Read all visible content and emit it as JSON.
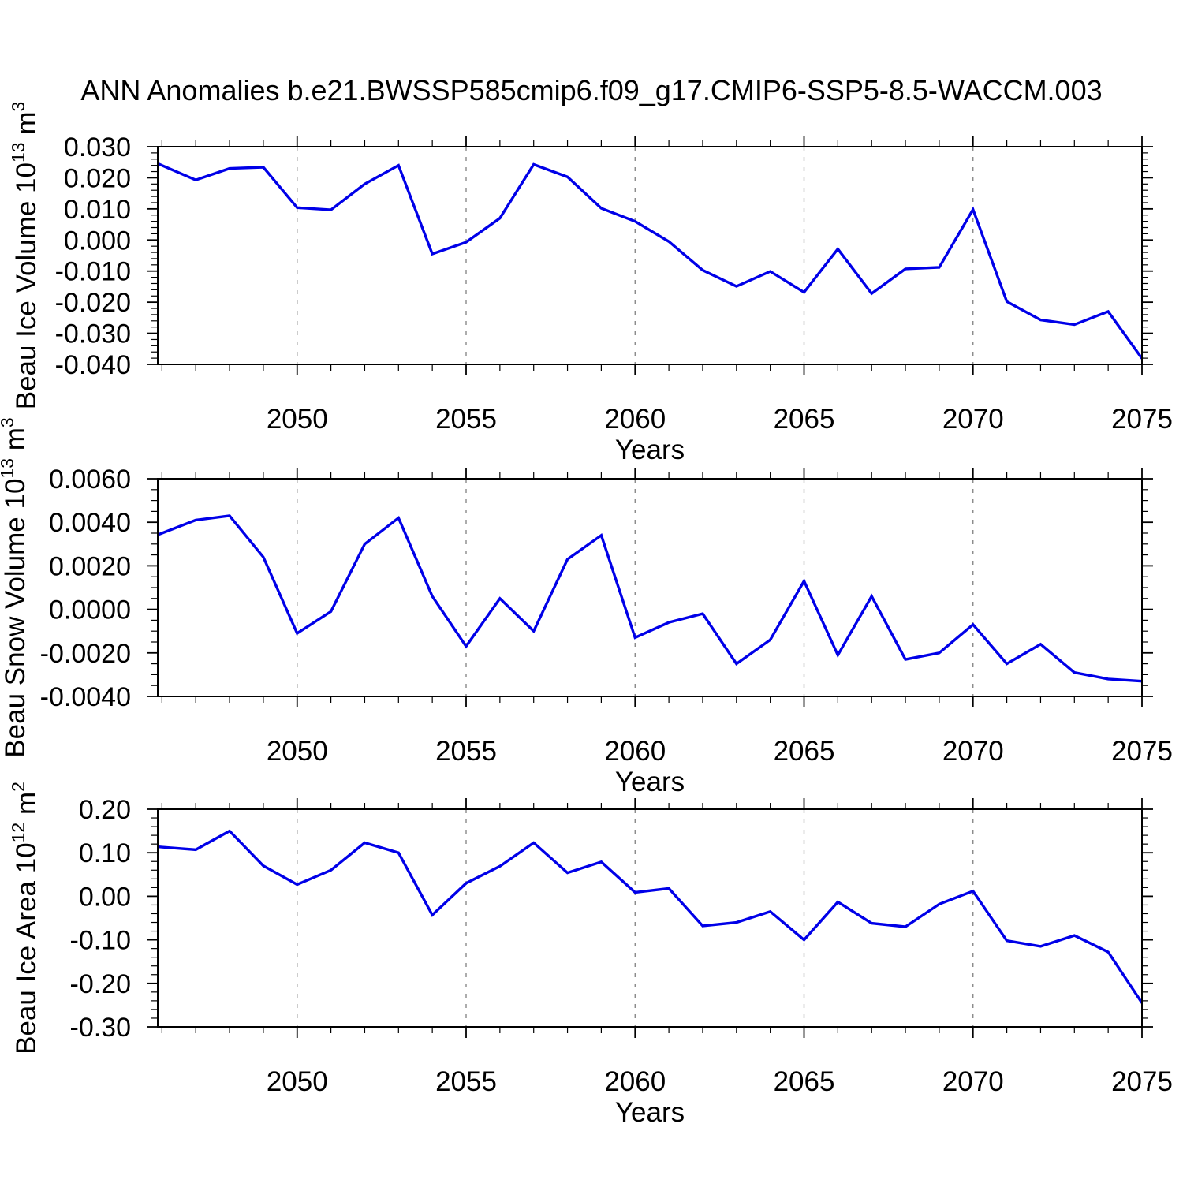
{
  "title": "ANN Anomalies b.e21.BWSSP585cmip6.f09_g17.CMIP6-SSP5-8.5-WACCM.003",
  "chart_data": [
    {
      "type": "line",
      "title": "",
      "ylabel": "Beau Ice Volume 10^13 m^3",
      "ylabel_rich": [
        [
          "Beau Ice Volume 10",
          false
        ],
        [
          "13",
          true
        ],
        [
          " m",
          false
        ],
        [
          "3",
          true
        ]
      ],
      "xlabel": "Years",
      "x": [
        2046,
        2047,
        2048,
        2049,
        2050,
        2051,
        2052,
        2053,
        2054,
        2055,
        2056,
        2057,
        2058,
        2059,
        2060,
        2061,
        2062,
        2063,
        2064,
        2065,
        2066,
        2067,
        2068,
        2069,
        2070,
        2071,
        2072,
        2073,
        2074,
        2075
      ],
      "values": [
        0.024,
        0.0193,
        0.023,
        0.0234,
        0.0104,
        0.0097,
        0.018,
        0.024,
        -0.0045,
        -0.0007,
        0.007,
        0.0243,
        0.0203,
        0.0102,
        0.006,
        -0.0005,
        -0.0097,
        -0.0149,
        -0.0101,
        -0.0168,
        -0.0029,
        -0.0172,
        -0.0093,
        -0.0088,
        0.0098,
        -0.0198,
        -0.0257,
        -0.0272,
        -0.023,
        -0.0381
      ],
      "xlim": [
        2045.875,
        2075
      ],
      "ylim": [
        -0.04,
        0.03
      ],
      "yticks": {
        "values": [
          0.03,
          0.02,
          0.01,
          0.0,
          -0.01,
          -0.02,
          -0.03,
          -0.04
        ],
        "labels": [
          "0.030",
          "0.020",
          "0.010",
          "0.000",
          "-0.010",
          "-0.020",
          "-0.030",
          "-0.040"
        ],
        "minor_step": 0.002
      },
      "xticks": {
        "values": [
          2050,
          2055,
          2060,
          2065,
          2070,
          2075
        ],
        "labels": [
          "2050",
          "2055",
          "2060",
          "2065",
          "2070",
          "2075"
        ],
        "minor_step": 1
      },
      "grid_x": [
        2050,
        2055,
        2060,
        2065,
        2070
      ],
      "legend": "none",
      "grid_style": "vertical-dashed",
      "line_color": "#0000e8"
    },
    {
      "type": "line",
      "title": "",
      "ylabel": "Beau Snow Volume 10^13 m^3",
      "ylabel_rich": [
        [
          "Beau Snow Volume 10",
          false
        ],
        [
          "13",
          true
        ],
        [
          " m",
          false
        ],
        [
          "3",
          true
        ]
      ],
      "xlabel": "Years",
      "x": [
        2046,
        2047,
        2048,
        2049,
        2050,
        2051,
        2052,
        2053,
        2054,
        2055,
        2056,
        2057,
        2058,
        2059,
        2060,
        2061,
        2062,
        2063,
        2064,
        2065,
        2066,
        2067,
        2068,
        2069,
        2070,
        2071,
        2072,
        2073,
        2074,
        2075
      ],
      "values": [
        0.0035,
        0.0041,
        0.0043,
        0.0024,
        -0.0011,
        -0.0001,
        0.003,
        0.0042,
        0.0006,
        -0.0017,
        0.0005,
        -0.001,
        0.0023,
        0.0034,
        -0.0013,
        -0.0006,
        -0.0002,
        -0.0025,
        -0.0014,
        0.0013,
        -0.0021,
        0.0006,
        -0.0023,
        -0.002,
        -0.0007,
        -0.0025,
        -0.0016,
        -0.0029,
        -0.0032,
        -0.0033
      ],
      "xlim": [
        2045.875,
        2075
      ],
      "ylim": [
        -0.004,
        0.006
      ],
      "yticks": {
        "values": [
          0.006,
          0.004,
          0.002,
          0.0,
          -0.002,
          -0.004
        ],
        "labels": [
          "0.0060",
          "0.0040",
          "0.0020",
          "0.0000",
          "-0.0020",
          "-0.0040"
        ],
        "minor_step": 0.0005
      },
      "xticks": {
        "values": [
          2050,
          2055,
          2060,
          2065,
          2070,
          2075
        ],
        "labels": [
          "2050",
          "2055",
          "2060",
          "2065",
          "2070",
          "2075"
        ],
        "minor_step": 1
      },
      "grid_x": [
        2050,
        2055,
        2060,
        2065,
        2070
      ],
      "legend": "none",
      "grid_style": "vertical-dashed",
      "line_color": "#0000e8"
    },
    {
      "type": "line",
      "title": "",
      "ylabel": "Beau Ice Area 10^12 m^2",
      "ylabel_rich": [
        [
          "Beau Ice Area 10",
          false
        ],
        [
          "12",
          true
        ],
        [
          " m",
          false
        ],
        [
          "2",
          true
        ]
      ],
      "xlabel": "Years",
      "x": [
        2046,
        2047,
        2048,
        2049,
        2050,
        2051,
        2052,
        2053,
        2054,
        2055,
        2056,
        2057,
        2058,
        2059,
        2060,
        2061,
        2062,
        2063,
        2064,
        2065,
        2066,
        2067,
        2068,
        2069,
        2070,
        2071,
        2072,
        2073,
        2074,
        2075
      ],
      "values": [
        0.113,
        0.107,
        0.15,
        0.07,
        0.027,
        0.06,
        0.123,
        0.1,
        -0.043,
        0.03,
        0.069,
        0.123,
        0.054,
        0.079,
        0.009,
        0.018,
        -0.068,
        -0.06,
        -0.035,
        -0.1,
        -0.013,
        -0.062,
        -0.07,
        -0.018,
        0.012,
        -0.102,
        -0.115,
        -0.09,
        -0.128,
        -0.245
      ],
      "xlim": [
        2045.875,
        2075
      ],
      "ylim": [
        -0.3,
        0.2
      ],
      "yticks": {
        "values": [
          0.2,
          0.1,
          0.0,
          -0.1,
          -0.2,
          -0.3
        ],
        "labels": [
          "0.20",
          "0.10",
          "0.00",
          "-0.10",
          "-0.20",
          "-0.30"
        ],
        "minor_step": 0.02
      },
      "xticks": {
        "values": [
          2050,
          2055,
          2060,
          2065,
          2070,
          2075
        ],
        "labels": [
          "2050",
          "2055",
          "2060",
          "2065",
          "2070",
          "2075"
        ],
        "minor_step": 1
      },
      "grid_x": [
        2050,
        2055,
        2060,
        2065,
        2070
      ],
      "legend": "none",
      "grid_style": "vertical-dashed",
      "line_color": "#0000e8"
    }
  ],
  "colors": {
    "line": "#0000e8",
    "axis": "#000000",
    "gridline": "#808080",
    "background": "#ffffff"
  }
}
